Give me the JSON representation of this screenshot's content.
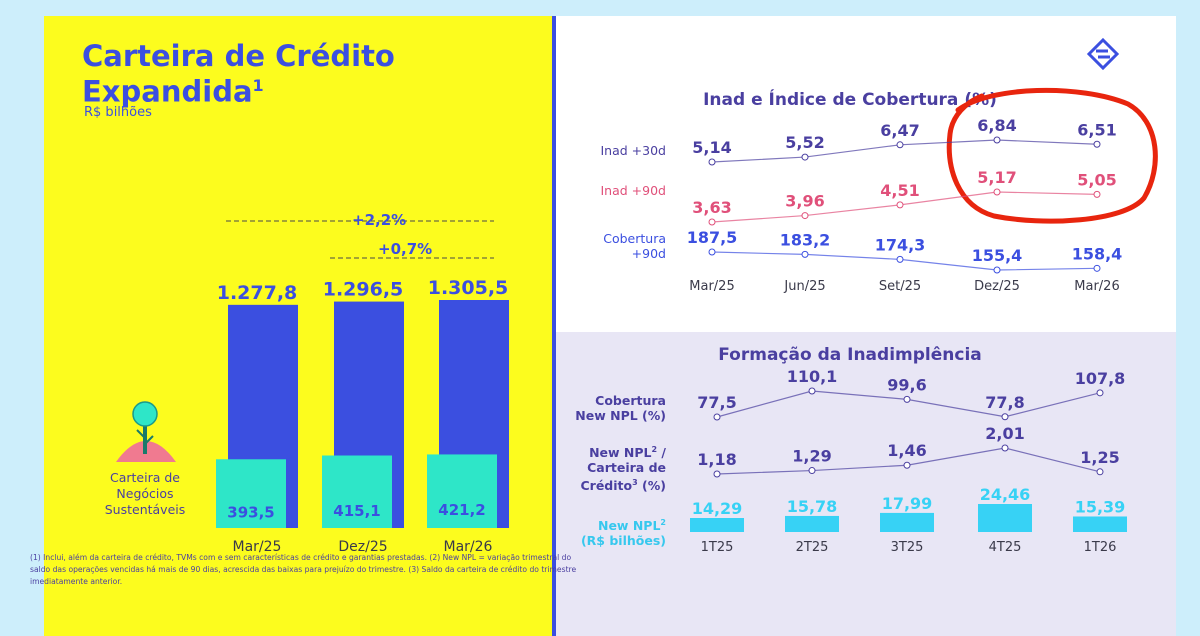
{
  "left": {
    "title_line1": "Carteira de Crédito",
    "title_line2": "Expandida",
    "title_sup": "1",
    "subtitle": "R$ bilhões",
    "growth_1": "+2,2%",
    "growth_2": "+0,7%",
    "sustainable_label": [
      "Carteira de",
      "Negócios",
      "Sustentáveis"
    ]
  },
  "top": {
    "title": "Inad e Índice de Cobertura (%)",
    "row_labels": {
      "inad30": "Inad +30d",
      "inad90": "Inad +90d",
      "cob1": "Cobertura",
      "cob2": "+90d"
    }
  },
  "bottom": {
    "title": "Formação da Inadimplência",
    "row_labels": {
      "cob1": "Cobertura",
      "cob2": "New NPL (%)",
      "npl1": "New NPL",
      "npl1_sup": "2",
      "npl1_end": " /",
      "npl2": "Carteira de",
      "npl3": "Crédito",
      "npl3_sup": "3",
      "npl3_end": " (%)",
      "nr1": "New NPL",
      "nr1_sup": "2",
      "nr2": "(R$ bilhões)"
    },
    "footnote": "(1) Inclui, além da carteira de crédito, TVMs com e sem características de crédito e garantias prestadas. (2) New NPL = variação trimestral do saldo das operações vencidas há mais de 90 dias, acrescida das baixas para prejuízo do trimestre. (3) Saldo da carteira de crédito do trimestre imediatamente anterior."
  },
  "colors": {
    "yellow": "#fcfc1e",
    "blue": "#3b4fe0",
    "teal": "#2ee6c8",
    "purple": "#4a3fa0",
    "pink": "#e0507a",
    "cyan": "#37d2f5",
    "red_annotation": "#e8250e"
  },
  "chart_data": [
    {
      "type": "bar",
      "title": "Carteira de Crédito Expandida",
      "categories": [
        "Mar/25",
        "Dez/25",
        "Mar/26"
      ],
      "series": [
        {
          "name": "Carteira de Crédito Expandida",
          "values": [
            1277.8,
            1296.5,
            1305.5
          ],
          "labels": [
            "1.277,8",
            "1.296,5",
            "1.305,5"
          ]
        },
        {
          "name": "Carteira de Negócios Sustentáveis",
          "values": [
            393.5,
            415.1,
            421.2
          ],
          "labels": [
            "393,5",
            "415,1",
            "421,2"
          ]
        }
      ]
    },
    {
      "type": "line",
      "title": "Inad e Índice de Cobertura (%)",
      "categories": [
        "Mar/25",
        "Jun/25",
        "Set/25",
        "Dez/25",
        "Mar/26"
      ],
      "series": [
        {
          "name": "Inad +30d",
          "values": [
            5.14,
            5.52,
            6.47,
            6.84,
            6.51
          ],
          "labels": [
            "5,14",
            "5,52",
            "6,47",
            "6,84",
            "6,51"
          ]
        },
        {
          "name": "Inad +90d",
          "values": [
            3.63,
            3.96,
            4.51,
            5.17,
            5.05
          ],
          "labels": [
            "3,63",
            "3,96",
            "4,51",
            "5,17",
            "5,05"
          ]
        },
        {
          "name": "Cobertura +90d",
          "values": [
            187.5,
            183.2,
            174.3,
            155.4,
            158.4
          ],
          "labels": [
            "187,5",
            "183,2",
            "174,3",
            "155,4",
            "158,4"
          ]
        }
      ]
    },
    {
      "type": "line",
      "title": "Formação da Inadimplência",
      "categories": [
        "1T25",
        "2T25",
        "3T25",
        "4T25",
        "1T26"
      ],
      "series": [
        {
          "name": "Cobertura New NPL (%)",
          "values": [
            77.5,
            110.1,
            99.6,
            77.8,
            107.8
          ],
          "labels": [
            "77,5",
            "110,1",
            "99,6",
            "77,8",
            "107,8"
          ]
        },
        {
          "name": "New NPL / Carteira de Crédito (%)",
          "values": [
            1.18,
            1.29,
            1.46,
            2.01,
            1.25
          ],
          "labels": [
            "1,18",
            "1,29",
            "1,46",
            "2,01",
            "1,25"
          ]
        },
        {
          "name": "New NPL (R$ bilhões)",
          "values": [
            14.29,
            15.78,
            17.99,
            24.46,
            15.39
          ],
          "labels": [
            "14,29",
            "15,78",
            "17,99",
            "24,46",
            "15,39"
          ]
        }
      ]
    }
  ]
}
